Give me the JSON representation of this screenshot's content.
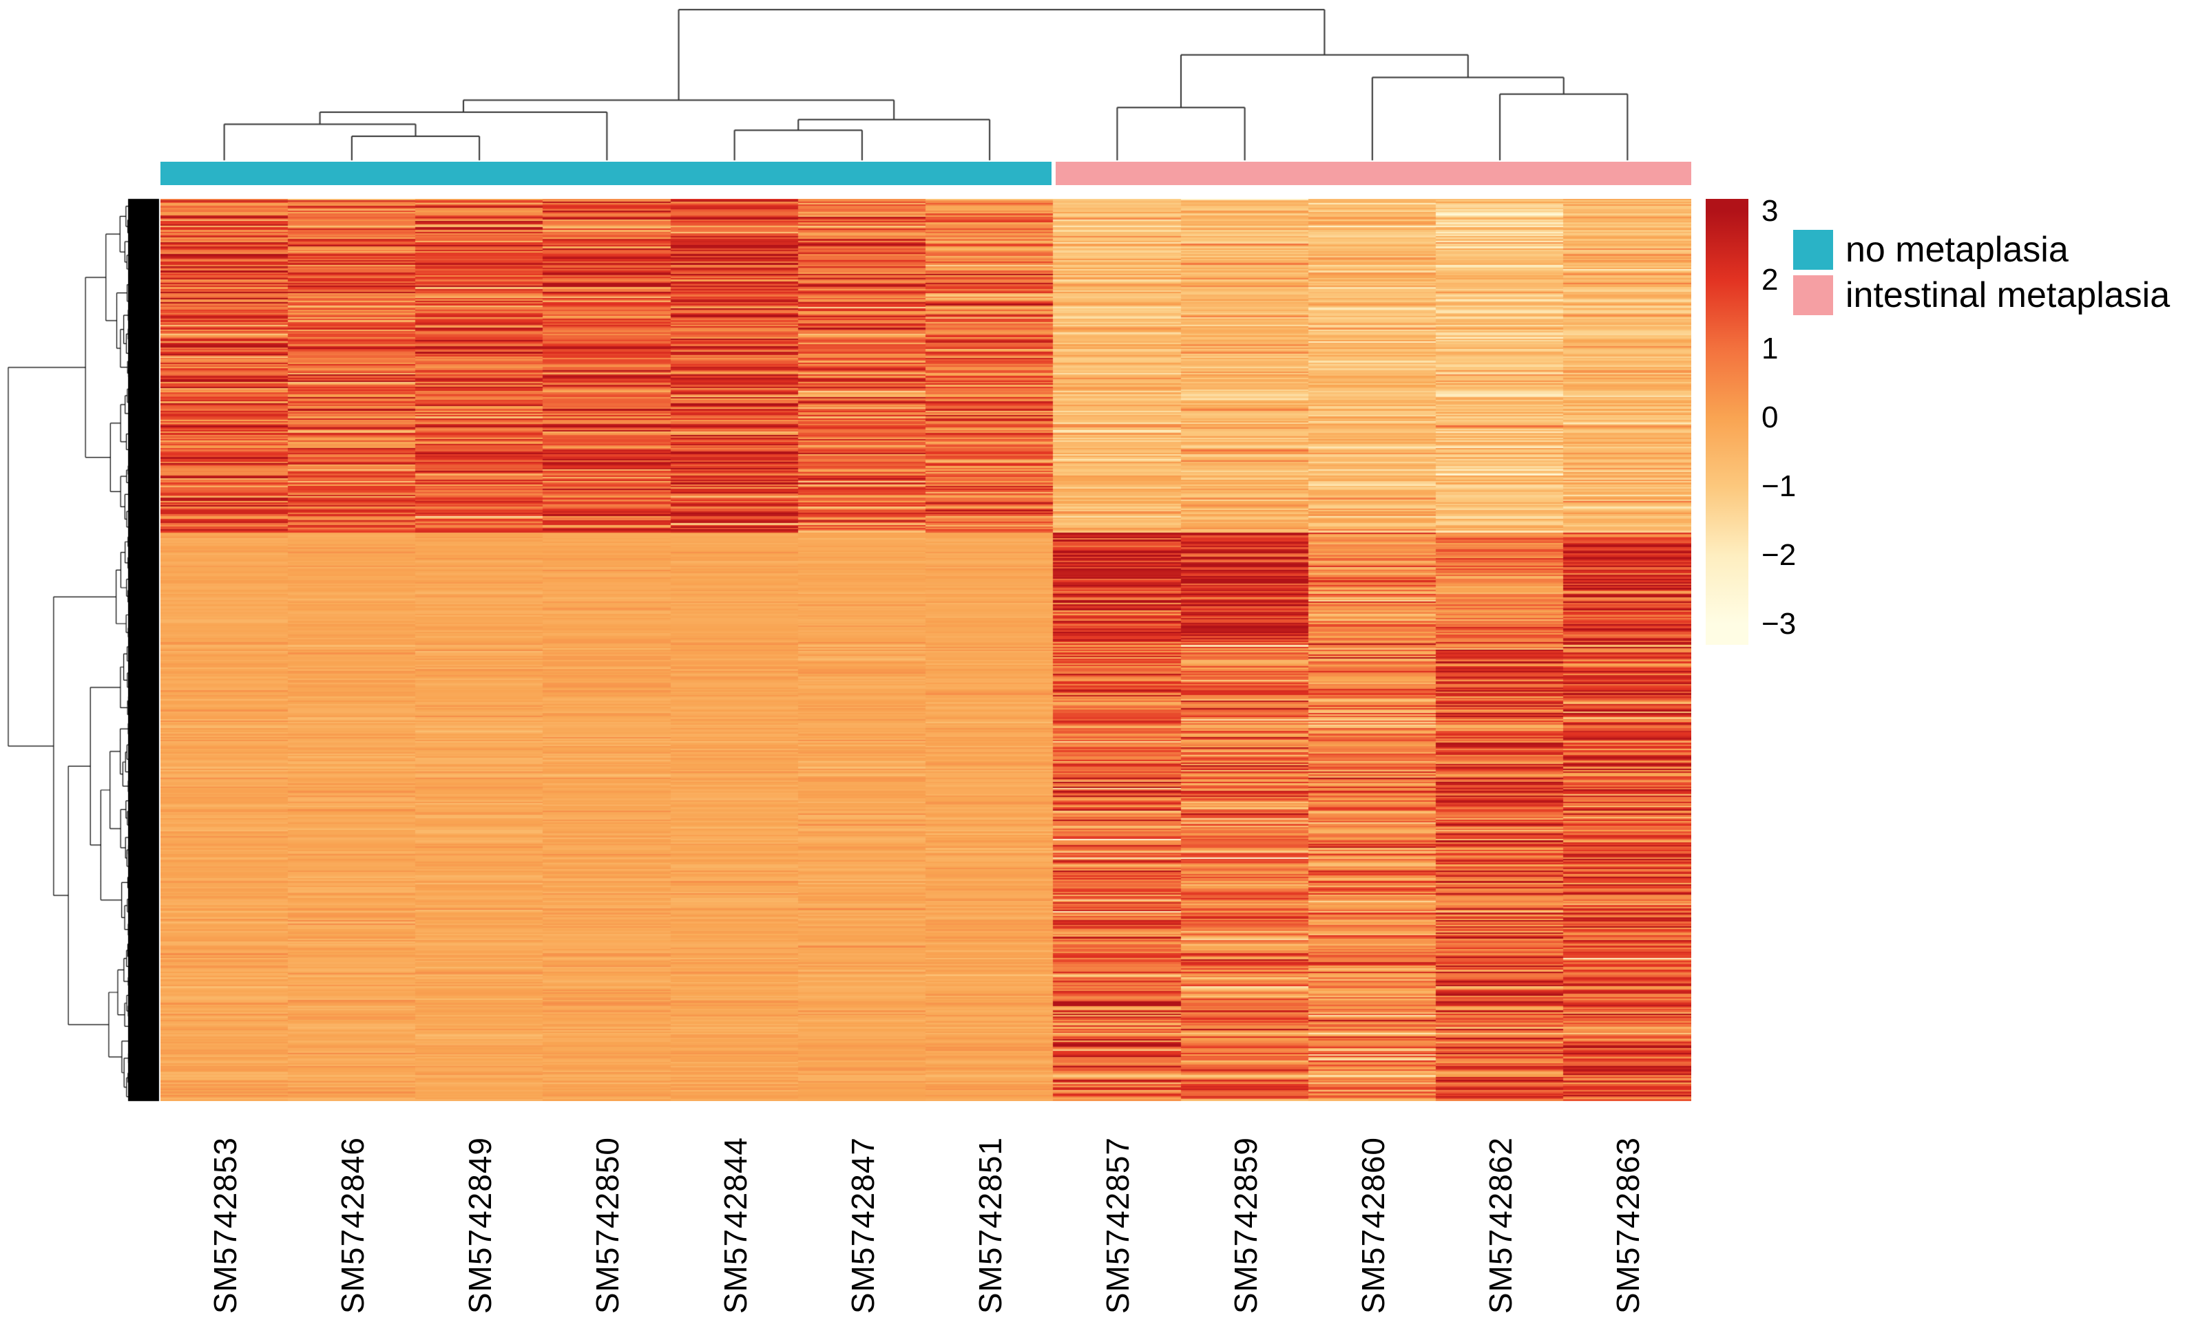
{
  "chart_data": {
    "type": "heatmap",
    "title": "",
    "x_axis": {
      "labels": [
        "SM5742853",
        "SM5742846",
        "SM5742849",
        "SM5742850",
        "SM5742844",
        "SM5742847",
        "SM5742851",
        "SM5742857",
        "SM5742859",
        "SM5742860",
        "SM5742862",
        "SM5742863"
      ],
      "label_rotation_deg": 90
    },
    "column_groups": [
      {
        "label": "no metaplasia",
        "color": "#2ab3c6",
        "columns": [
          "SM5742853",
          "SM5742846",
          "SM5742849",
          "SM5742850",
          "SM5742844",
          "SM5742847",
          "SM5742851"
        ]
      },
      {
        "label": "intestinal metaplasia",
        "color": "#f59fa3",
        "columns": [
          "SM5742857",
          "SM5742859",
          "SM5742860",
          "SM5742862",
          "SM5742863"
        ]
      }
    ],
    "colorbar": {
      "min": -3,
      "max": 3,
      "tick_values": [
        3,
        2,
        1,
        0,
        -1,
        -2,
        -3
      ],
      "tick_labels": [
        "3",
        "2",
        "1",
        "0",
        "−1",
        "−2",
        "−3"
      ],
      "color_stops": [
        {
          "value": 3,
          "color": "#b11218"
        },
        {
          "value": 2,
          "color": "#e23322"
        },
        {
          "value": 1,
          "color": "#f3723e"
        },
        {
          "value": 0,
          "color": "#f9a452"
        },
        {
          "value": -1,
          "color": "#fcc87d"
        },
        {
          "value": -2,
          "color": "#feeec0"
        },
        {
          "value": -3,
          "color": "#fffde4"
        }
      ]
    },
    "row_axis": {
      "labels_visible": false,
      "approx_row_count": 600,
      "dendrogram": true
    },
    "column_dendrogram": {
      "h": 1.0,
      "children": [
        {
          "h": 0.4,
          "children": [
            {
              "h": 0.32,
              "children": [
                {
                  "h": 0.24,
                  "children": [
                    {
                      "leaf": 0
                    },
                    {
                      "h": 0.16,
                      "children": [
                        {
                          "leaf": 1
                        },
                        {
                          "leaf": 2
                        }
                      ]
                    }
                  ]
                },
                {
                  "leaf": 3
                }
              ]
            },
            {
              "h": 0.27,
              "children": [
                {
                  "h": 0.2,
                  "children": [
                    {
                      "leaf": 4
                    },
                    {
                      "leaf": 5
                    }
                  ]
                },
                {
                  "leaf": 6
                }
              ]
            }
          ]
        },
        {
          "h": 0.7,
          "children": [
            {
              "h": 0.35,
              "children": [
                {
                  "leaf": 7
                },
                {
                  "leaf": 8
                }
              ]
            },
            {
              "h": 0.55,
              "children": [
                {
                  "leaf": 9
                },
                {
                  "h": 0.44,
                  "children": [
                    {
                      "leaf": 10
                    },
                    {
                      "leaf": 11
                    }
                  ]
                }
              ]
            }
          ]
        }
      ]
    },
    "heatmap_model": {
      "note": "Block-level z-score values estimated from pixel colors; individual gene rows are too dense to read.",
      "row_blocks": [
        {
          "name": "cluster-up-in-no-metaplasia",
          "row_fraction": 0.37,
          "col_means": [
            1.5,
            1.3,
            1.4,
            1.4,
            1.7,
            1.1,
            1.0,
            -0.6,
            -0.5,
            -0.6,
            -0.9,
            -0.5
          ],
          "col_sds": [
            0.8,
            0.8,
            0.8,
            0.8,
            0.8,
            0.8,
            0.8,
            0.45,
            0.45,
            0.45,
            0.5,
            0.45
          ]
        },
        {
          "name": "cluster-up-in-intestinal-metaplasia-strong",
          "row_fraction": 0.12,
          "col_means": [
            -0.1,
            -0.1,
            -0.1,
            -0.1,
            -0.1,
            -0.1,
            -0.1,
            2.1,
            2.2,
            0.4,
            0.7,
            1.8
          ],
          "col_sds": [
            0.12,
            0.12,
            0.12,
            0.12,
            0.12,
            0.12,
            0.12,
            0.7,
            0.7,
            0.6,
            0.6,
            0.7
          ]
        },
        {
          "name": "cluster-up-in-intestinal-metaplasia",
          "row_fraction": 0.51,
          "col_means": [
            -0.1,
            -0.1,
            -0.1,
            -0.1,
            -0.1,
            -0.1,
            -0.1,
            1.1,
            0.9,
            0.6,
            1.4,
            1.5
          ],
          "col_sds": [
            0.18,
            0.18,
            0.18,
            0.18,
            0.18,
            0.18,
            0.18,
            0.9,
            0.85,
            0.8,
            0.9,
            0.9
          ]
        }
      ]
    }
  }
}
